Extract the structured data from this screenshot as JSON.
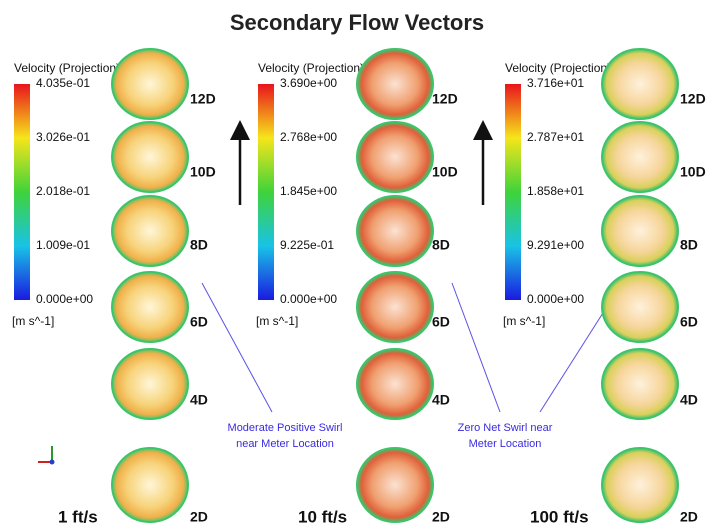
{
  "title": "Secondary Flow Vectors",
  "panels": [
    {
      "colorbar_title": "Velocity (Projection)",
      "ticks": [
        "4.035e-01",
        "3.026e-01",
        "2.018e-01",
        "1.009e-01",
        "0.000e+00"
      ],
      "unit": "[m s^-1]",
      "speed": "1 ft/s",
      "stations": [
        "12D",
        "10D",
        "8D",
        "6D",
        "4D",
        "2D"
      ]
    },
    {
      "colorbar_title": "Velocity (Projection)",
      "ticks": [
        "3.690e+00",
        "2.768e+00",
        "1.845e+00",
        "9.225e-01",
        "0.000e+00"
      ],
      "unit": "[m s^-1]",
      "speed": "10 ft/s",
      "stations": [
        "12D",
        "10D",
        "8D",
        "6D",
        "4D",
        "2D"
      ]
    },
    {
      "colorbar_title": "Velocity (Projection)",
      "ticks": [
        "3.716e+01",
        "2.787e+01",
        "1.858e+01",
        "9.291e+00",
        "0.000e+00"
      ],
      "unit": "[m s^-1]",
      "speed": "100 ft/s",
      "stations": [
        "12D",
        "10D",
        "8D",
        "6D",
        "4D",
        "2D"
      ]
    }
  ],
  "annotations": [
    {
      "lines": [
        "Moderate Positive Swirl",
        "near Meter Location"
      ]
    },
    {
      "lines": [
        "Zero Net Swirl near",
        "Meter Location"
      ]
    }
  ]
}
